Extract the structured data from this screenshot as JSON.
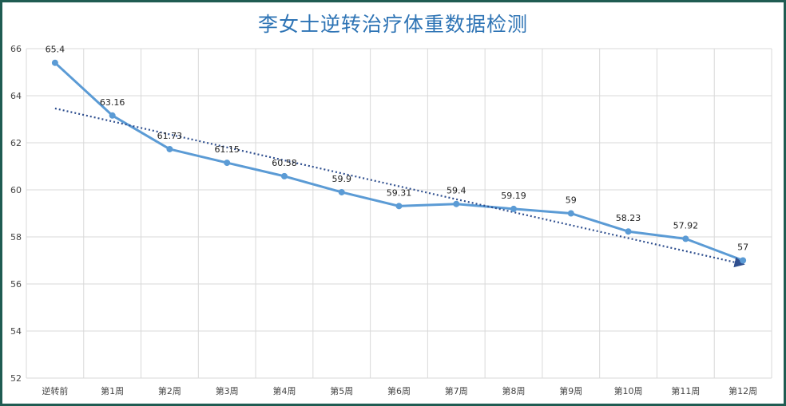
{
  "chart_data": {
    "type": "line",
    "title": "李女士逆转治疗体重数据检测",
    "xlabel": "",
    "ylabel": "",
    "categories": [
      "逆转前",
      "第1周",
      "第2周",
      "第3周",
      "第4周",
      "第5周",
      "第6周",
      "第7周",
      "第8周",
      "第9周",
      "第10周",
      "第11周",
      "第12周"
    ],
    "series": [
      {
        "values": [
          65.4,
          63.16,
          61.73,
          61.15,
          60.58,
          59.9,
          59.31,
          59.4,
          59.19,
          59,
          58.23,
          57.92,
          57
        ],
        "labels": [
          "65.4",
          "63.16",
          "61.73",
          "61.15",
          "60.58",
          "59.9",
          "59.31",
          "59.4",
          "59.19",
          "59",
          "58.23",
          "57.92",
          "57"
        ],
        "color": "#5b9bd5"
      }
    ],
    "trendline": {
      "type": "linear",
      "color": "#2f4f8f",
      "style": "dotted",
      "arrow": true
    },
    "ylim": [
      52,
      66
    ],
    "yticks": [
      "52",
      "54",
      "56",
      "58",
      "60",
      "62",
      "64",
      "66"
    ],
    "grid": true,
    "legend": "none"
  }
}
